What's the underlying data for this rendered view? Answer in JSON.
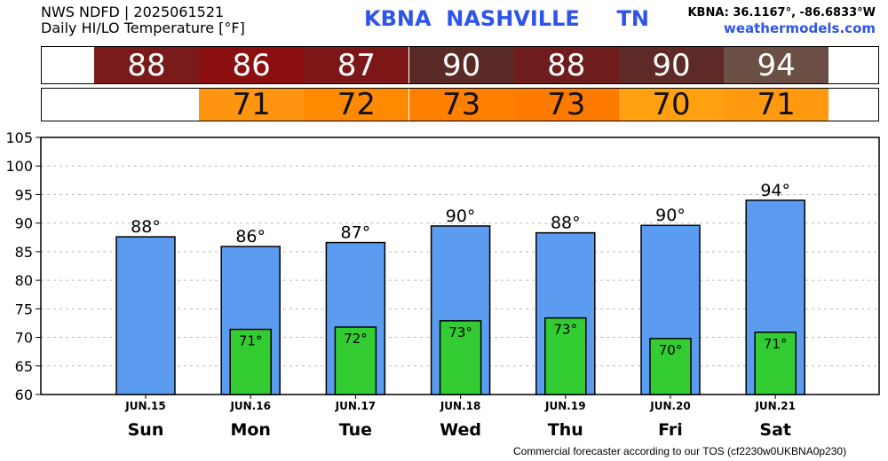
{
  "header": {
    "line1": "NWS NDFD | 2025061521",
    "line2": "Daily HI/LO Temperature [°F]",
    "station": "KBNA  NASHVILLE     TN",
    "coords": "KBNA: 36.1167°, -86.6833°W",
    "site": "weathermodels.com"
  },
  "hi_strip": [
    {
      "value": "88",
      "color": "#7a1a1a"
    },
    {
      "value": "86",
      "color": "#8b0f0f"
    },
    {
      "value": "87",
      "color": "#7d1717"
    },
    {
      "value": "90",
      "color": "#5a2a26"
    },
    {
      "value": "88",
      "color": "#6e1c1c"
    },
    {
      "value": "90",
      "color": "#5e2a27"
    },
    {
      "value": "94",
      "color": "#6b4f44"
    }
  ],
  "lo_strip": [
    null,
    {
      "value": "71",
      "color": "#ff9410"
    },
    {
      "value": "72",
      "color": "#ff8a00"
    },
    {
      "value": "73",
      "color": "#ff7f00"
    },
    {
      "value": "73",
      "color": "#ff7b00"
    },
    {
      "value": "70",
      "color": "#ffa010"
    },
    {
      "value": "71",
      "color": "#ff9a10"
    }
  ],
  "chart_data": {
    "type": "bar",
    "categories": [
      "Sun",
      "Mon",
      "Tue",
      "Wed",
      "Thu",
      "Fri",
      "Sat"
    ],
    "dates": [
      "JUN.15",
      "JUN.16",
      "JUN.17",
      "JUN.18",
      "JUN.19",
      "JUN.20",
      "JUN.21"
    ],
    "series": [
      {
        "values": [
          87.6,
          85.9,
          86.6,
          89.5,
          88.3,
          89.6,
          94.0
        ],
        "labels": [
          "88°",
          "86°",
          "87°",
          "90°",
          "88°",
          "90°",
          "94°"
        ],
        "color": "#5b9cf0"
      },
      {
        "values": [
          null,
          71.4,
          71.8,
          72.9,
          73.4,
          69.8,
          70.9
        ],
        "labels": [
          null,
          "71°",
          "72°",
          "73°",
          "73°",
          "70°",
          "71°"
        ],
        "color": "#33cc33"
      }
    ],
    "ylim": [
      60,
      105
    ],
    "yticks": [
      60,
      65,
      70,
      75,
      80,
      85,
      90,
      95,
      100,
      105
    ],
    "grid": true
  },
  "footer": "Commercial forecaster according to our TOS (cf2230w0UKBNA0p230)"
}
